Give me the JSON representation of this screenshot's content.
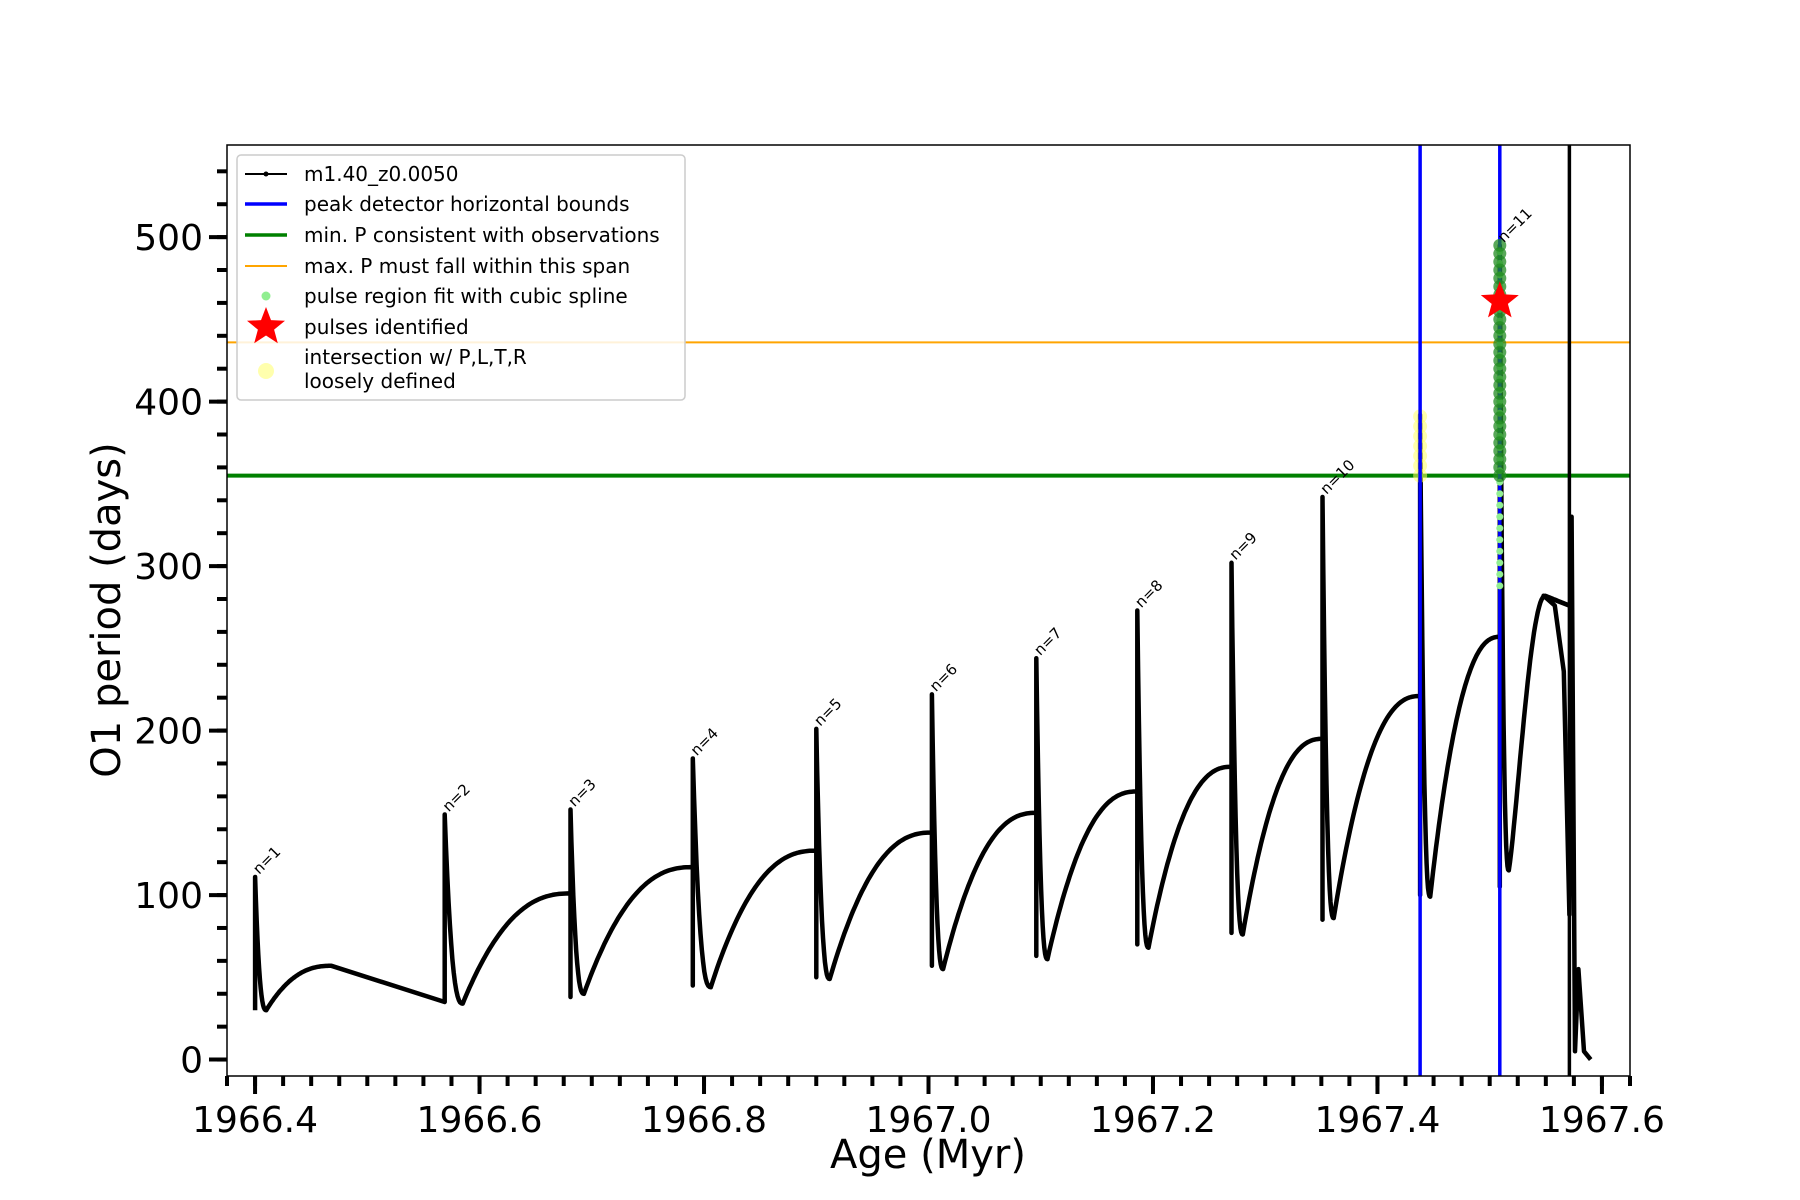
{
  "chart_data": {
    "type": "line",
    "xlabel": "Age (Myr)",
    "ylabel": "O1 period (days)",
    "xlim": [
      1966.375,
      1967.625
    ],
    "ylim": [
      -10,
      556
    ],
    "x_ticks": [
      1966.4,
      1966.6,
      1966.8,
      1967.0,
      1967.2,
      1967.4,
      1967.6
    ],
    "x_tick_labels": [
      "1966.4",
      "1966.6",
      "1966.8",
      "1967.0",
      "1967.2",
      "1967.4",
      "1967.6"
    ],
    "y_ticks": [
      0,
      100,
      200,
      300,
      400,
      500
    ],
    "y_tick_labels": [
      "0",
      "100",
      "200",
      "300",
      "400",
      "500"
    ],
    "legend_position": "upper-left",
    "legend": [
      {
        "label": "m1.40_z0.0050",
        "kind": "line-marker",
        "color": "#000000"
      },
      {
        "label": "peak detector horizontal bounds",
        "kind": "line",
        "color": "#0000ff"
      },
      {
        "label": "min. P consistent with observations",
        "kind": "line",
        "color": "#008000"
      },
      {
        "label": "max. P must fall within this span",
        "kind": "thin-line",
        "color": "#ffa500"
      },
      {
        "label": "pulse region fit with cubic spline",
        "kind": "dot",
        "color": "#90ee90"
      },
      {
        "label": "pulses identified",
        "kind": "star",
        "color": "#ff0000"
      },
      {
        "label": "intersection w/ P,L,T,R",
        "label2": "loosely defined",
        "kind": "circle",
        "color": "#ffff99"
      }
    ],
    "series_name": "m1.40_z0.0050",
    "series_color": "#000000",
    "cycles": [
      {
        "pulse": "n=1",
        "x0": 1966.4,
        "peak": 111,
        "tail": 30,
        "x_dip": 1966.41,
        "x_end": 1966.468,
        "y_dip": 30,
        "y_end": 57
      },
      {
        "pulse": "n=2",
        "x0": 1966.569,
        "peak": 149,
        "tail": 35,
        "x_dip": 1966.585,
        "x_end": 1966.681,
        "y_dip": 34,
        "y_end": 101
      },
      {
        "pulse": "n=3",
        "x0": 1966.681,
        "peak": 152,
        "tail": 38,
        "x_dip": 1966.693,
        "x_end": 1966.79,
        "y_dip": 40,
        "y_end": 117
      },
      {
        "pulse": "n=4",
        "x0": 1966.79,
        "peak": 183,
        "tail": 45,
        "x_dip": 1966.806,
        "x_end": 1966.9,
        "y_dip": 44,
        "y_end": 127
      },
      {
        "pulse": "n=5",
        "x0": 1966.9,
        "peak": 201,
        "tail": 50,
        "x_dip": 1966.912,
        "x_end": 1967.003,
        "y_dip": 49,
        "y_end": 138
      },
      {
        "pulse": "n=6",
        "x0": 1967.003,
        "peak": 222,
        "tail": 57,
        "x_dip": 1967.013,
        "x_end": 1967.096,
        "y_dip": 55,
        "y_end": 150
      },
      {
        "pulse": "n=7",
        "x0": 1967.096,
        "peak": 244,
        "tail": 63,
        "x_dip": 1967.106,
        "x_end": 1967.186,
        "y_dip": 61,
        "y_end": 163
      },
      {
        "pulse": "n=8",
        "x0": 1967.186,
        "peak": 273,
        "tail": 70,
        "x_dip": 1967.196,
        "x_end": 1967.27,
        "y_dip": 68,
        "y_end": 178
      },
      {
        "pulse": "n=9",
        "x0": 1967.27,
        "peak": 302,
        "tail": 77,
        "x_dip": 1967.28,
        "x_end": 1967.351,
        "y_dip": 76,
        "y_end": 195
      },
      {
        "pulse": "n=10",
        "x0": 1967.351,
        "peak": 342,
        "tail": 85,
        "x_dip": 1967.361,
        "x_end": 1967.438,
        "y_dip": 86,
        "y_end": 221
      },
      {
        "pulse": "",
        "x0": 1967.438,
        "peak": 392,
        "tail": 100,
        "x_dip": 1967.447,
        "x_end": 1967.509,
        "y_dip": 99,
        "y_end": 257
      },
      {
        "pulse": "n=11",
        "x0": 1967.509,
        "peak": 495,
        "tail": 105,
        "x_dip": 1967.517,
        "x_end": 1967.571,
        "y_dip": 115,
        "y_end": 200
      }
    ],
    "final_drop": {
      "x": [
        1967.548,
        1967.558,
        1967.566,
        1967.571,
        1967.573,
        1967.576,
        1967.579,
        1967.584,
        1967.59
      ],
      "y": [
        282,
        276,
        236,
        88,
        330,
        5,
        55,
        5,
        0
      ]
    },
    "h_lines": [
      {
        "y": 355,
        "color": "#008000",
        "legend": "min. P consistent with observations"
      },
      {
        "y": 436,
        "color": "#ffa500",
        "legend": "max. P must fall within this span"
      }
    ],
    "v_lines": [
      {
        "x": 1967.438,
        "color": "#0000ff"
      },
      {
        "x": 1967.509,
        "color": "#0000ff"
      },
      {
        "x": 1967.571,
        "color": "#000000"
      }
    ],
    "star": {
      "x": 1967.509,
      "y": 461
    },
    "spline_region": {
      "x": 1967.509,
      "y_min": 288,
      "y_max": 495
    },
    "green_region": {
      "x": 1967.509,
      "y_min": 355,
      "y_max": 495
    },
    "yellow_region": {
      "x": 1967.438,
      "y_min": 355,
      "y_max": 392
    }
  }
}
